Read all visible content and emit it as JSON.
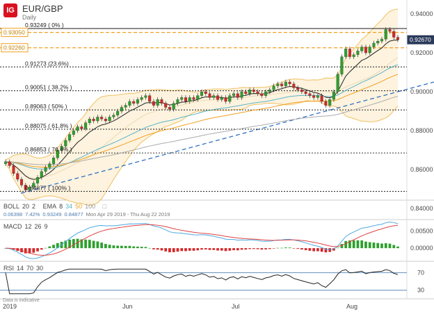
{
  "header": {
    "logo": "IG",
    "symbol": "EUR/GBP",
    "timeframe": "Daily"
  },
  "price_labels": {
    "upper_box": "0.93050",
    "lower_box": "0.92260",
    "last": "0.92670"
  },
  "fib_levels": [
    {
      "label": "0.93249 ( 0% )",
      "value": 0.93249
    },
    {
      "label": "0.91273 (23.6%)",
      "value": 0.91273
    },
    {
      "label": "0.90051 ( 38.2% )",
      "value": 0.90051
    },
    {
      "label": "0.89063 ( 50% )",
      "value": 0.89063
    },
    {
      "label": "0.88075 ( 61.8% )",
      "value": 0.88075
    },
    {
      "label": "0.86853 ( 76.4% )",
      "value": 0.86853
    },
    {
      "label": "0.84877 ( 100% )",
      "value": 0.84877
    }
  ],
  "indicator_row": {
    "boll": "BOLL",
    "boll_p1": "20",
    "boll_p2": "2",
    "ema": "EMA",
    "ema_p1": "8",
    "ema_p2": "34",
    "ema_p3": "50",
    "ema_p4": "100",
    "v1": "0.06398",
    "v2": "7.42%",
    "v3": "0.93249",
    "v4": "0.84877",
    "range": "Mon Apr 29 2019 - Thu Aug 22 2019"
  },
  "macd": {
    "label": "MACD",
    "p1": "12",
    "p2": "26",
    "p3": "9"
  },
  "rsi": {
    "label": "RSI",
    "p1": "14",
    "p2": "70",
    "p3": "30"
  },
  "footer": "Data is indicative",
  "x_labels": [
    "2019",
    "Jun",
    "Jul",
    "Aug"
  ],
  "colors": {
    "up": "#2ca02c",
    "down": "#d62728",
    "fib": "#333333",
    "orange": "#f0a020",
    "trend": "#3070c0",
    "boll": "#f0c060",
    "ema8": "#222222",
    "ema34": "#5ab4c8",
    "ema50": "#f0a020",
    "ema100": "#aaaaaa",
    "macd": "#4aa8e0",
    "signal": "#e04040"
  },
  "chart_data": [
    {
      "type": "candlestick",
      "title": "EUR/GBP",
      "subtitle": "Daily",
      "x_range": [
        "2019-04-29",
        "2019-08-22"
      ],
      "y_ticks": [
        0.84,
        0.86,
        0.88,
        0.9,
        0.92,
        0.94
      ],
      "ylim": [
        0.835,
        0.945
      ],
      "closes": [
        0.864,
        0.862,
        0.858,
        0.855,
        0.852,
        0.8495,
        0.851,
        0.853,
        0.856,
        0.859,
        0.861,
        0.863,
        0.866,
        0.87,
        0.872,
        0.875,
        0.878,
        0.88,
        0.882,
        0.881,
        0.884,
        0.886,
        0.885,
        0.887,
        0.886,
        0.885,
        0.887,
        0.888,
        0.89,
        0.892,
        0.893,
        0.895,
        0.894,
        0.896,
        0.897,
        0.898,
        0.895,
        0.893,
        0.896,
        0.894,
        0.892,
        0.891,
        0.894,
        0.896,
        0.897,
        0.895,
        0.897,
        0.896,
        0.898,
        0.9,
        0.899,
        0.897,
        0.898,
        0.896,
        0.897,
        0.895,
        0.898,
        0.899,
        0.897,
        0.9,
        0.899,
        0.901,
        0.9,
        0.899,
        0.898,
        0.9,
        0.901,
        0.903,
        0.904,
        0.903,
        0.905,
        0.904,
        0.902,
        0.901,
        0.9,
        0.899,
        0.898,
        0.897,
        0.898,
        0.895,
        0.893,
        0.896,
        0.9,
        0.909,
        0.918,
        0.922,
        0.918,
        0.919,
        0.921,
        0.923,
        0.92,
        0.923,
        0.925,
        0.926,
        0.927,
        0.932,
        0.931,
        0.928,
        0.9267
      ],
      "fib_levels": [
        0.93249,
        0.91273,
        0.90051,
        0.89063,
        0.88075,
        0.86853,
        0.84877
      ],
      "horizontal_levels": [
        0.9305,
        0.9226
      ],
      "last_price": 0.9267,
      "series": [
        {
          "name": "BOLL 20 2"
        },
        {
          "name": "EMA 8"
        },
        {
          "name": "EMA 34"
        },
        {
          "name": "EMA 50"
        },
        {
          "name": "EMA 100"
        }
      ]
    },
    {
      "type": "bar",
      "title": "MACD 12 26 9",
      "y_ticks": [
        0.0,
        0.005
      ],
      "ylim": [
        -0.001,
        0.0072
      ]
    },
    {
      "type": "line",
      "title": "RSI 14 70 30",
      "y_ticks": [
        70,
        30
      ],
      "ylim": [
        20,
        80
      ]
    }
  ]
}
